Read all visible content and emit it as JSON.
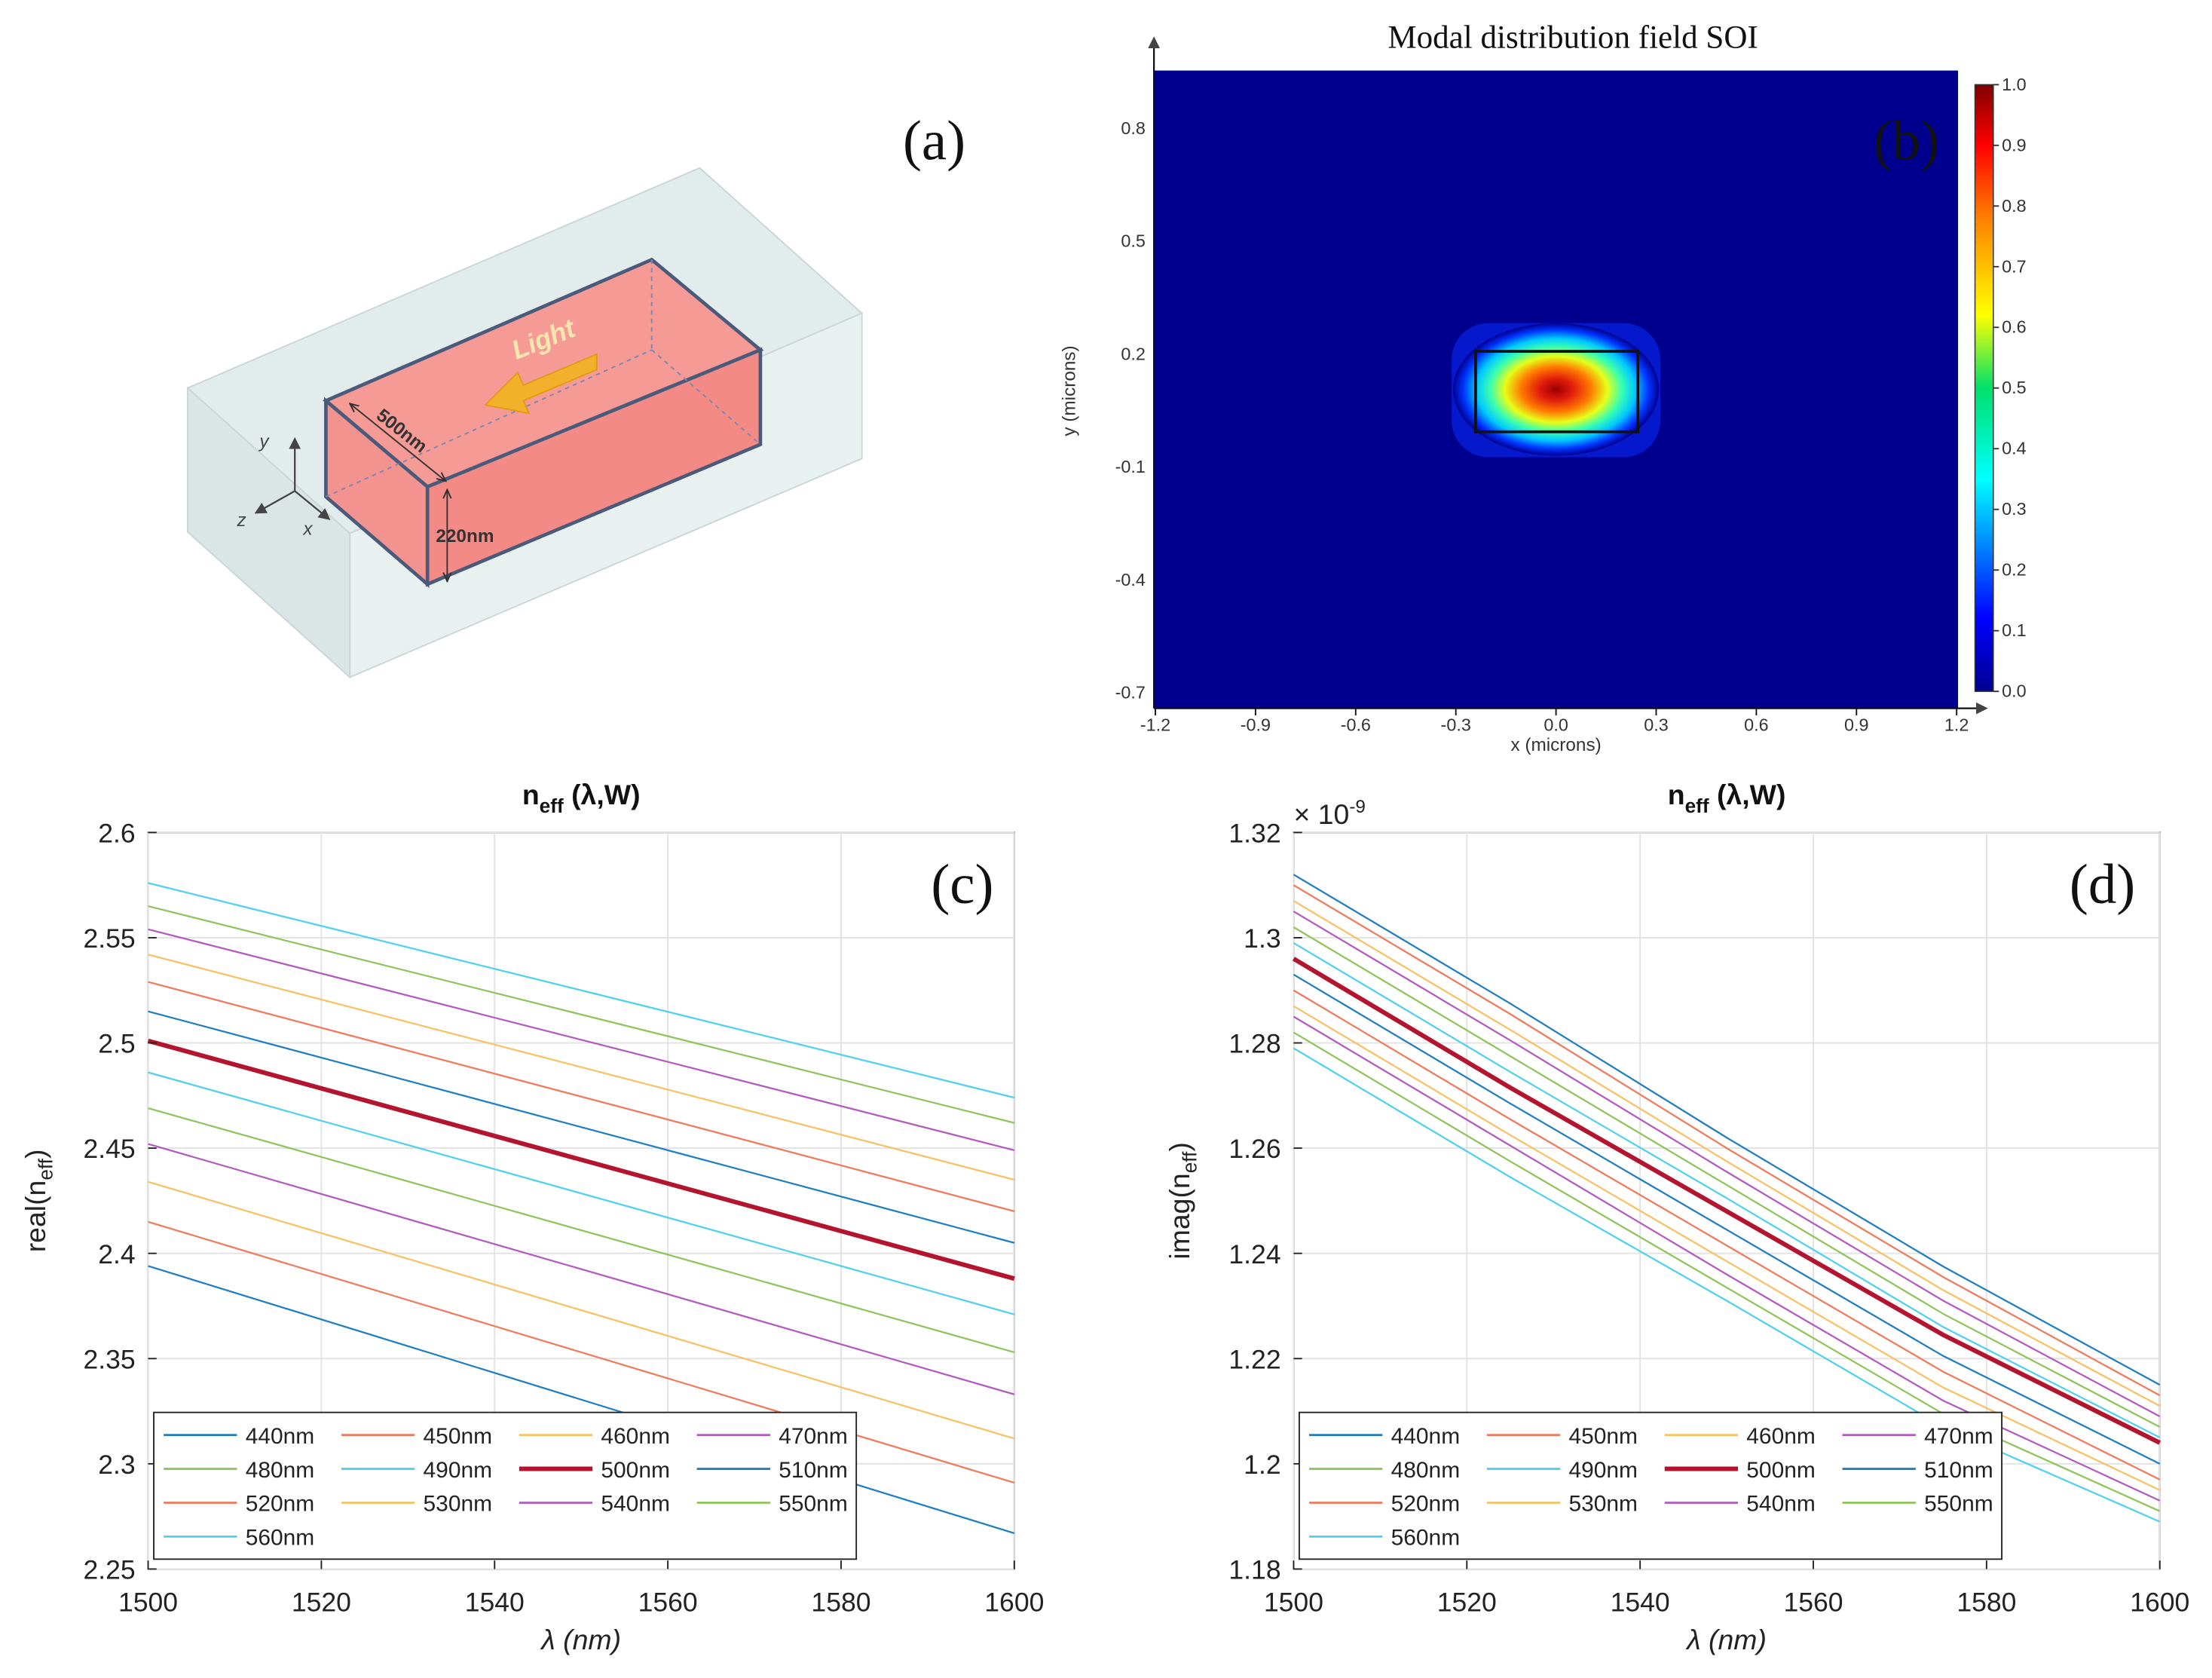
{
  "panels": {
    "a": {
      "label": "(a)",
      "light_label": "Light",
      "width_label": "500nm",
      "height_label": "220nm",
      "axis_y": "y",
      "axis_z": "z",
      "axis_x": "x",
      "colors": {
        "core": "#f59a94",
        "cladding": "#dfe8e8",
        "arrow": "#f2b12a"
      }
    },
    "b": {
      "label": "(b)",
      "title": "Modal distribution field SOI",
      "xlabel": "x (microns)",
      "ylabel": "y (microns)",
      "xticks": [
        "-1.2",
        "-0.9",
        "-0.6",
        "-0.3",
        "0.0",
        "0.3",
        "0.6",
        "0.9",
        "1.2"
      ],
      "yticks": [
        "0.8",
        "0.5",
        "0.2",
        "-0.1",
        "-0.4",
        "-0.7"
      ],
      "colorbar_ticks": [
        "1.0",
        "0.9",
        "0.8",
        "0.7",
        "0.6",
        "0.5",
        "0.4",
        "0.3",
        "0.2",
        "0.1",
        "0.0"
      ],
      "colors": {
        "background": "#00008f"
      }
    }
  },
  "chart_data": [
    {
      "id": "c",
      "type": "line",
      "label": "(c)",
      "title": "n",
      "title_sub": "eff",
      "title_args": " (λ,W)",
      "xlabel": "λ  (nm)",
      "ylabel": "real(n",
      "ylabel_sub": "eff",
      "ylabel_close": ")",
      "xlim": [
        1500,
        1600
      ],
      "ylim": [
        2.25,
        2.6
      ],
      "xticks": [
        1500,
        1520,
        1540,
        1560,
        1580,
        1600
      ],
      "xtick_labels": [
        "1500",
        "1520",
        "1540",
        "1560",
        "1580",
        "1600"
      ],
      "yticks": [
        2.25,
        2.3,
        2.35,
        2.4,
        2.45,
        2.5,
        2.55,
        2.6
      ],
      "ytick_labels": [
        "2.25",
        "2.3",
        "2.35",
        "2.4",
        "2.45",
        "2.5",
        "2.55",
        "2.6"
      ],
      "grid": true,
      "legend_position": "bottom-left",
      "x": [
        1500,
        1600
      ],
      "series": [
        {
          "name": "440nm",
          "color": "#1f7ec0",
          "values": [
            2.394,
            2.267
          ]
        },
        {
          "name": "450nm",
          "color": "#f07a5c",
          "values": [
            2.415,
            2.291
          ]
        },
        {
          "name": "460nm",
          "color": "#f8c163",
          "values": [
            2.434,
            2.312
          ]
        },
        {
          "name": "470nm",
          "color": "#b35abf",
          "values": [
            2.452,
            2.333
          ]
        },
        {
          "name": "480nm",
          "color": "#8fc45a",
          "values": [
            2.469,
            2.353
          ]
        },
        {
          "name": "490nm",
          "color": "#4fd1ee",
          "values": [
            2.486,
            2.371
          ]
        },
        {
          "name": "500nm",
          "color": "#b3152f",
          "values": [
            2.501,
            2.388
          ],
          "bold": true
        },
        {
          "name": "510nm",
          "color": "#1f7ec0",
          "values": [
            2.515,
            2.405
          ]
        },
        {
          "name": "520nm",
          "color": "#f07a5c",
          "values": [
            2.529,
            2.42
          ]
        },
        {
          "name": "530nm",
          "color": "#f8c163",
          "values": [
            2.542,
            2.435
          ]
        },
        {
          "name": "540nm",
          "color": "#b35abf",
          "values": [
            2.554,
            2.449
          ]
        },
        {
          "name": "550nm",
          "color": "#8fc45a",
          "values": [
            2.565,
            2.462
          ]
        },
        {
          "name": "560nm",
          "color": "#4fd1ee",
          "values": [
            2.576,
            2.474
          ]
        }
      ]
    },
    {
      "id": "d",
      "type": "line",
      "label": "(d)",
      "title": "n",
      "title_sub": "eff",
      "title_args": " (λ,W)",
      "xlabel": "λ  (nm)",
      "ylabel": "imag(n",
      "ylabel_sub": "eff",
      "ylabel_close": ")",
      "exponent_label": "× 10",
      "exponent_power": "-9",
      "xlim": [
        1500,
        1600
      ],
      "ylim": [
        1.18,
        1.32
      ],
      "xticks": [
        1500,
        1520,
        1540,
        1560,
        1580,
        1600
      ],
      "xtick_labels": [
        "1500",
        "1520",
        "1540",
        "1560",
        "1580",
        "1600"
      ],
      "yticks": [
        1.18,
        1.2,
        1.22,
        1.24,
        1.26,
        1.28,
        1.3,
        1.32
      ],
      "ytick_labels": [
        "1.18",
        "1.2",
        "1.22",
        "1.24",
        "1.26",
        "1.28",
        "1.3",
        "1.32"
      ],
      "grid": true,
      "legend_position": "bottom-left",
      "x": [
        1500,
        1525,
        1550,
        1575,
        1600
      ],
      "series": [
        {
          "name": "440nm",
          "color": "#1f7ec0",
          "values": [
            1.312,
            1.2875,
            1.262,
            1.2375,
            1.215
          ]
        },
        {
          "name": "450nm",
          "color": "#f07a5c",
          "values": [
            1.31,
            1.2855,
            1.26,
            1.2355,
            1.213
          ]
        },
        {
          "name": "460nm",
          "color": "#f8c163",
          "values": [
            1.307,
            1.2825,
            1.2575,
            1.233,
            1.211
          ]
        },
        {
          "name": "470nm",
          "color": "#b35abf",
          "values": [
            1.305,
            1.2805,
            1.2555,
            1.231,
            1.209
          ]
        },
        {
          "name": "480nm",
          "color": "#8fc45a",
          "values": [
            1.302,
            1.2775,
            1.253,
            1.2285,
            1.207
          ]
        },
        {
          "name": "490nm",
          "color": "#4fd1ee",
          "values": [
            1.299,
            1.2745,
            1.2505,
            1.226,
            1.205
          ]
        },
        {
          "name": "500nm",
          "color": "#b3152f",
          "values": [
            1.296,
            1.2715,
            1.248,
            1.2245,
            1.204
          ],
          "bold": true
        },
        {
          "name": "510nm",
          "color": "#1f7ec0",
          "values": [
            1.293,
            1.2685,
            1.2445,
            1.2205,
            1.2
          ]
        },
        {
          "name": "520nm",
          "color": "#f07a5c",
          "values": [
            1.29,
            1.2655,
            1.2415,
            1.2175,
            1.197
          ]
        },
        {
          "name": "530nm",
          "color": "#f8c163",
          "values": [
            1.287,
            1.2625,
            1.2385,
            1.2145,
            1.195
          ]
        },
        {
          "name": "540nm",
          "color": "#b35abf",
          "values": [
            1.285,
            1.2605,
            1.236,
            1.212,
            1.193
          ]
        },
        {
          "name": "550nm",
          "color": "#8fc45a",
          "values": [
            1.282,
            1.2575,
            1.2335,
            1.2095,
            1.191
          ]
        },
        {
          "name": "560nm",
          "color": "#4fd1ee",
          "values": [
            1.279,
            1.2545,
            1.231,
            1.207,
            1.189
          ]
        }
      ]
    }
  ]
}
